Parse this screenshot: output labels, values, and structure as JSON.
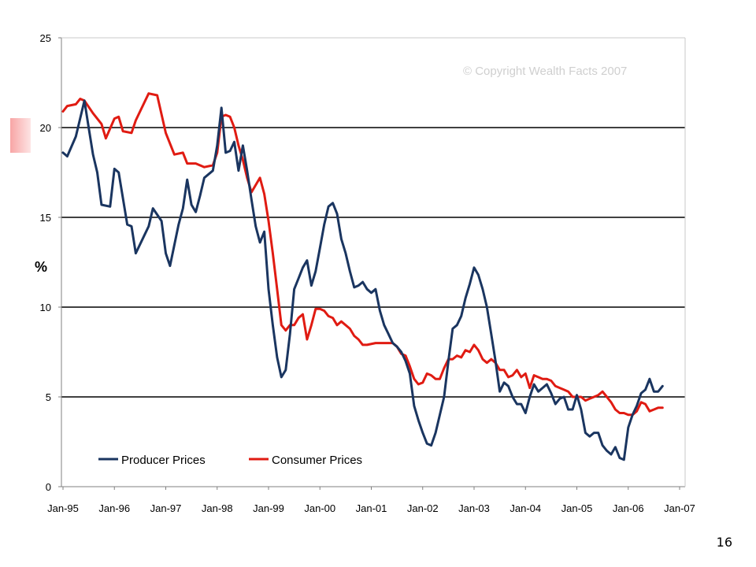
{
  "slide": {
    "page_number": "16"
  },
  "chart_data": {
    "type": "line",
    "title": "",
    "xlabel": "",
    "ylabel": "%",
    "watermark": "© Copyright Wealth Facts 2007",
    "ylim": [
      0,
      25
    ],
    "yticks": [
      0,
      5,
      10,
      15,
      20,
      25
    ],
    "x_tick_labels": [
      "Jan-95",
      "Jan-96",
      "Jan-97",
      "Jan-98",
      "Jan-99",
      "Jan-00",
      "Jan-01",
      "Jan-02",
      "Jan-03",
      "Jan-04",
      "Jan-05",
      "Jan-06",
      "Jan-07"
    ],
    "grid": "horizontal lines at 5, 10, 15, 20",
    "legend_position": "bottom-left",
    "colors": {
      "producer": "#1a3560",
      "consumer": "#e01b12",
      "grid": "#000000",
      "axis": "#808080"
    },
    "series": [
      {
        "name": "Producer Prices",
        "color": "#1a3560",
        "points": [
          [
            "1995-01",
            18.6
          ],
          [
            "1995-02",
            18.4
          ],
          [
            "1995-04",
            19.5
          ],
          [
            "1995-06",
            21.5
          ],
          [
            "1995-07",
            20.0
          ],
          [
            "1995-08",
            18.5
          ],
          [
            "1995-09",
            17.5
          ],
          [
            "1995-10",
            15.7
          ],
          [
            "1995-12",
            15.6
          ],
          [
            "1996-01",
            17.7
          ],
          [
            "1996-02",
            17.5
          ],
          [
            "1996-04",
            14.6
          ],
          [
            "1996-05",
            14.5
          ],
          [
            "1996-06",
            13.0
          ],
          [
            "1996-08",
            14.0
          ],
          [
            "1996-09",
            14.5
          ],
          [
            "1996-10",
            15.5
          ],
          [
            "1996-12",
            14.8
          ],
          [
            "1997-01",
            13.0
          ],
          [
            "1997-02",
            12.3
          ],
          [
            "1997-04",
            14.6
          ],
          [
            "1997-05",
            15.5
          ],
          [
            "1997-06",
            17.1
          ],
          [
            "1997-07",
            15.7
          ],
          [
            "1997-08",
            15.3
          ],
          [
            "1997-09",
            16.2
          ],
          [
            "1997-10",
            17.2
          ],
          [
            "1997-12",
            17.6
          ],
          [
            "1998-01",
            19.0
          ],
          [
            "1998-02",
            21.1
          ],
          [
            "1998-03",
            18.6
          ],
          [
            "1998-04",
            18.7
          ],
          [
            "1998-05",
            19.2
          ],
          [
            "1998-06",
            17.6
          ],
          [
            "1998-07",
            19.0
          ],
          [
            "1998-08",
            17.6
          ],
          [
            "1998-09",
            16.0
          ],
          [
            "1998-10",
            14.5
          ],
          [
            "1998-11",
            13.6
          ],
          [
            "1998-12",
            14.2
          ],
          [
            "1999-01",
            11.0
          ],
          [
            "1999-02",
            9.0
          ],
          [
            "1999-03",
            7.2
          ],
          [
            "1999-04",
            6.1
          ],
          [
            "1999-05",
            6.5
          ],
          [
            "1999-06",
            8.5
          ],
          [
            "1999-07",
            11.0
          ],
          [
            "1999-08",
            11.6
          ],
          [
            "1999-09",
            12.2
          ],
          [
            "1999-10",
            12.6
          ],
          [
            "1999-11",
            11.2
          ],
          [
            "1999-12",
            12.0
          ],
          [
            "2000-01",
            13.3
          ],
          [
            "2000-02",
            14.6
          ],
          [
            "2000-03",
            15.6
          ],
          [
            "2000-04",
            15.8
          ],
          [
            "2000-05",
            15.2
          ],
          [
            "2000-06",
            13.8
          ],
          [
            "2000-07",
            13.0
          ],
          [
            "2000-08",
            12.0
          ],
          [
            "2000-09",
            11.1
          ],
          [
            "2000-10",
            11.2
          ],
          [
            "2000-11",
            11.4
          ],
          [
            "2000-12",
            11.0
          ],
          [
            "2001-01",
            10.8
          ],
          [
            "2001-02",
            11.0
          ],
          [
            "2001-03",
            9.8
          ],
          [
            "2001-04",
            9.0
          ],
          [
            "2001-05",
            8.5
          ],
          [
            "2001-06",
            8.0
          ],
          [
            "2001-07",
            7.8
          ],
          [
            "2001-08",
            7.5
          ],
          [
            "2001-09",
            7.0
          ],
          [
            "2001-10",
            6.3
          ],
          [
            "2001-11",
            4.5
          ],
          [
            "2001-12",
            3.7
          ],
          [
            "2002-01",
            3.0
          ],
          [
            "2002-02",
            2.4
          ],
          [
            "2002-03",
            2.3
          ],
          [
            "2002-04",
            3.0
          ],
          [
            "2002-05",
            4.0
          ],
          [
            "2002-06",
            5.0
          ],
          [
            "2002-07",
            7.0
          ],
          [
            "2002-08",
            8.8
          ],
          [
            "2002-09",
            9.0
          ],
          [
            "2002-10",
            9.5
          ],
          [
            "2002-11",
            10.5
          ],
          [
            "2002-12",
            11.3
          ],
          [
            "2003-01",
            12.2
          ],
          [
            "2003-02",
            11.8
          ],
          [
            "2003-03",
            11.0
          ],
          [
            "2003-04",
            10.0
          ],
          [
            "2003-05",
            8.5
          ],
          [
            "2003-06",
            7.0
          ],
          [
            "2003-07",
            5.3
          ],
          [
            "2003-08",
            5.8
          ],
          [
            "2003-09",
            5.6
          ],
          [
            "2003-10",
            5.0
          ],
          [
            "2003-11",
            4.6
          ],
          [
            "2003-12",
            4.6
          ],
          [
            "2004-01",
            4.1
          ],
          [
            "2004-02",
            5.0
          ],
          [
            "2004-03",
            5.7
          ],
          [
            "2004-04",
            5.3
          ],
          [
            "2004-05",
            5.5
          ],
          [
            "2004-06",
            5.7
          ],
          [
            "2004-07",
            5.2
          ],
          [
            "2004-08",
            4.6
          ],
          [
            "2004-09",
            4.9
          ],
          [
            "2004-10",
            5.0
          ],
          [
            "2004-11",
            4.3
          ],
          [
            "2004-12",
            4.3
          ],
          [
            "2005-01",
            5.1
          ],
          [
            "2005-02",
            4.3
          ],
          [
            "2005-03",
            3.0
          ],
          [
            "2005-04",
            2.8
          ],
          [
            "2005-05",
            3.0
          ],
          [
            "2005-06",
            3.0
          ],
          [
            "2005-07",
            2.3
          ],
          [
            "2005-08",
            2.0
          ],
          [
            "2005-09",
            1.8
          ],
          [
            "2005-10",
            2.2
          ],
          [
            "2005-11",
            1.6
          ],
          [
            "2005-12",
            1.5
          ],
          [
            "2006-01",
            3.3
          ],
          [
            "2006-02",
            4.0
          ],
          [
            "2006-03",
            4.5
          ],
          [
            "2006-04",
            5.2
          ],
          [
            "2006-05",
            5.4
          ],
          [
            "2006-06",
            6.0
          ],
          [
            "2006-07",
            5.3
          ],
          [
            "2006-08",
            5.3
          ],
          [
            "2006-09",
            5.6
          ]
        ]
      },
      {
        "name": "Consumer Prices",
        "color": "#e01b12",
        "points": [
          [
            "1995-01",
            20.9
          ],
          [
            "1995-02",
            21.2
          ],
          [
            "1995-04",
            21.3
          ],
          [
            "1995-05",
            21.6
          ],
          [
            "1995-06",
            21.5
          ],
          [
            "1995-08",
            20.8
          ],
          [
            "1995-10",
            20.2
          ],
          [
            "1995-11",
            19.4
          ],
          [
            "1996-01",
            20.5
          ],
          [
            "1996-02",
            20.6
          ],
          [
            "1996-03",
            19.8
          ],
          [
            "1996-05",
            19.7
          ],
          [
            "1996-06",
            20.4
          ],
          [
            "1996-08",
            21.4
          ],
          [
            "1996-09",
            21.9
          ],
          [
            "1996-11",
            21.8
          ],
          [
            "1997-01",
            19.7
          ],
          [
            "1997-03",
            18.5
          ],
          [
            "1997-05",
            18.6
          ],
          [
            "1997-06",
            18.0
          ],
          [
            "1997-08",
            18.0
          ],
          [
            "1997-10",
            17.8
          ],
          [
            "1997-12",
            17.9
          ],
          [
            "1998-01",
            18.6
          ],
          [
            "1998-02",
            20.6
          ],
          [
            "1998-03",
            20.7
          ],
          [
            "1998-04",
            20.6
          ],
          [
            "1998-05",
            20.0
          ],
          [
            "1998-06",
            19.0
          ],
          [
            "1998-07",
            18.2
          ],
          [
            "1998-08",
            17.2
          ],
          [
            "1998-09",
            16.4
          ],
          [
            "1998-11",
            17.2
          ],
          [
            "1998-12",
            16.3
          ],
          [
            "1999-01",
            14.8
          ],
          [
            "1999-02",
            13.0
          ],
          [
            "1999-03",
            11.0
          ],
          [
            "1999-04",
            9.0
          ],
          [
            "1999-05",
            8.7
          ],
          [
            "1999-06",
            9.0
          ],
          [
            "1999-07",
            9.0
          ],
          [
            "1999-08",
            9.4
          ],
          [
            "1999-09",
            9.6
          ],
          [
            "1999-10",
            8.2
          ],
          [
            "1999-11",
            9.0
          ],
          [
            "1999-12",
            9.9
          ],
          [
            "2000-01",
            9.9
          ],
          [
            "2000-02",
            9.8
          ],
          [
            "2000-03",
            9.5
          ],
          [
            "2000-04",
            9.4
          ],
          [
            "2000-05",
            9.0
          ],
          [
            "2000-06",
            9.2
          ],
          [
            "2000-08",
            8.8
          ],
          [
            "2000-09",
            8.4
          ],
          [
            "2000-10",
            8.2
          ],
          [
            "2000-11",
            7.9
          ],
          [
            "2000-12",
            7.9
          ],
          [
            "2001-02",
            8.0
          ],
          [
            "2001-04",
            8.0
          ],
          [
            "2001-06",
            8.0
          ],
          [
            "2001-07",
            7.8
          ],
          [
            "2001-08",
            7.4
          ],
          [
            "2001-09",
            7.3
          ],
          [
            "2001-10",
            6.7
          ],
          [
            "2001-11",
            6.0
          ],
          [
            "2001-12",
            5.7
          ],
          [
            "2002-01",
            5.8
          ],
          [
            "2002-02",
            6.3
          ],
          [
            "2002-03",
            6.2
          ],
          [
            "2002-04",
            6.0
          ],
          [
            "2002-05",
            6.0
          ],
          [
            "2002-06",
            6.6
          ],
          [
            "2002-07",
            7.1
          ],
          [
            "2002-08",
            7.1
          ],
          [
            "2002-09",
            7.3
          ],
          [
            "2002-10",
            7.2
          ],
          [
            "2002-11",
            7.6
          ],
          [
            "2002-12",
            7.5
          ],
          [
            "2003-01",
            7.9
          ],
          [
            "2003-02",
            7.6
          ],
          [
            "2003-03",
            7.1
          ],
          [
            "2003-04",
            6.9
          ],
          [
            "2003-05",
            7.1
          ],
          [
            "2003-06",
            6.9
          ],
          [
            "2003-07",
            6.5
          ],
          [
            "2003-08",
            6.5
          ],
          [
            "2003-09",
            6.1
          ],
          [
            "2003-10",
            6.2
          ],
          [
            "2003-11",
            6.5
          ],
          [
            "2003-12",
            6.1
          ],
          [
            "2004-01",
            6.3
          ],
          [
            "2004-02",
            5.5
          ],
          [
            "2004-03",
            6.2
          ],
          [
            "2004-04",
            6.1
          ],
          [
            "2004-05",
            6.0
          ],
          [
            "2004-06",
            6.0
          ],
          [
            "2004-07",
            5.9
          ],
          [
            "2004-08",
            5.6
          ],
          [
            "2004-09",
            5.5
          ],
          [
            "2004-10",
            5.4
          ],
          [
            "2004-11",
            5.3
          ],
          [
            "2004-12",
            5.0
          ],
          [
            "2005-01",
            5.0
          ],
          [
            "2005-02",
            5.0
          ],
          [
            "2005-03",
            4.8
          ],
          [
            "2005-04",
            4.9
          ],
          [
            "2005-05",
            5.0
          ],
          [
            "2005-06",
            5.1
          ],
          [
            "2005-07",
            5.3
          ],
          [
            "2005-08",
            5.0
          ],
          [
            "2005-09",
            4.7
          ],
          [
            "2005-10",
            4.3
          ],
          [
            "2005-11",
            4.1
          ],
          [
            "2005-12",
            4.1
          ],
          [
            "2006-01",
            4.0
          ],
          [
            "2006-02",
            4.0
          ],
          [
            "2006-03",
            4.2
          ],
          [
            "2006-04",
            4.7
          ],
          [
            "2006-05",
            4.6
          ],
          [
            "2006-06",
            4.2
          ],
          [
            "2006-07",
            4.3
          ],
          [
            "2006-08",
            4.4
          ],
          [
            "2006-09",
            4.4
          ]
        ]
      }
    ]
  }
}
